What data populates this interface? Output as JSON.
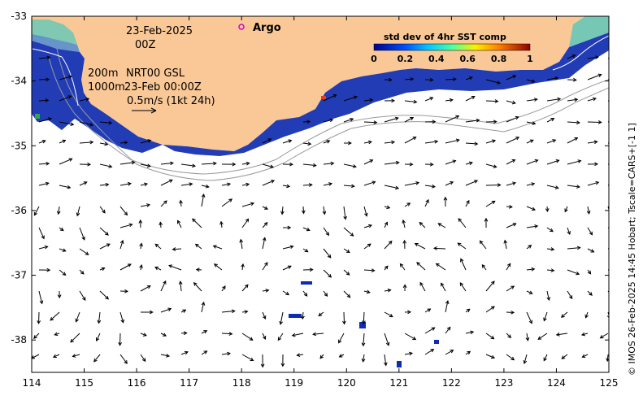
{
  "map": {
    "date_label": "23-Feb-2025",
    "time_label": "00Z",
    "argo_label": "Argo",
    "contour_200": "200m",
    "contour_1000": "1000m",
    "product_label": "NRT00 GSL",
    "product_time": "23-Feb 00:00Z",
    "scale_label": "0.5m/s (1kt 24h)",
    "credit": "© IMOS 26-Feb-2025 14:45 Hobart; Tscale=CARS+[-1 1]",
    "colors": {
      "land": "#f9c896",
      "cold": "#0a1a9e",
      "mid": "#1ec8c8",
      "warm": "#e83a1a"
    }
  },
  "colorbar": {
    "title": "std dev of 4hr SST comp",
    "ticks": [
      "0",
      "0.2",
      "0.4",
      "0.6",
      "0.8",
      "1"
    ],
    "range": [
      0,
      1
    ]
  },
  "axes": {
    "x_ticks": [
      "114",
      "115",
      "116",
      "117",
      "118",
      "119",
      "120",
      "121",
      "122",
      "123",
      "124",
      "125"
    ],
    "y_ticks": [
      "-33",
      "-34",
      "-35",
      "-36",
      "-37",
      "-38"
    ],
    "lon_range": [
      114,
      125
    ],
    "lat_range": [
      -38.5,
      -33
    ]
  }
}
